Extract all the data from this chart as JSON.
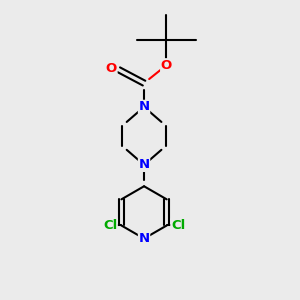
{
  "background_color": "#ebebeb",
  "bond_color": "#000000",
  "n_color": "#0000ff",
  "o_color": "#ff0000",
  "cl_color": "#00aa00",
  "line_width": 1.5,
  "font_size_atom": 9.5,
  "fig_size": [
    3.0,
    3.0
  ],
  "dpi": 100,
  "xlim": [
    0,
    10
  ],
  "ylim": [
    0,
    10
  ]
}
